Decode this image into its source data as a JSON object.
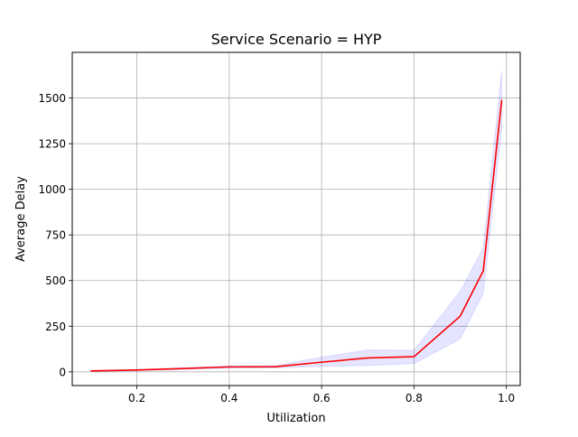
{
  "chart_data": {
    "type": "line",
    "title": "Service Scenario = HYP",
    "xlabel": "Utilization",
    "ylabel": "Average Delay",
    "xlim": [
      0.06,
      1.03
    ],
    "ylim": [
      -75,
      1750
    ],
    "x_ticks": [
      0.2,
      0.4,
      0.6,
      0.8,
      1.0
    ],
    "x_tick_labels": [
      "0.2",
      "0.4",
      "0.6",
      "0.8",
      "1.0"
    ],
    "y_ticks": [
      0,
      250,
      500,
      750,
      1000,
      1250,
      1500
    ],
    "y_tick_labels": [
      "0",
      "250",
      "500",
      "750",
      "1000",
      "1250",
      "1500"
    ],
    "grid": true,
    "legend": "none",
    "series": [
      {
        "x": [
          0.1,
          0.2,
          0.3,
          0.4,
          0.5,
          0.6,
          0.7,
          0.8,
          0.9,
          0.95,
          0.99
        ],
        "y": [
          5,
          10,
          18,
          27,
          28,
          53,
          76,
          83,
          305,
          553,
          1490
        ],
        "ci_low": [
          2,
          6,
          13,
          21,
          22,
          30,
          35,
          45,
          180,
          430,
          1330
        ],
        "ci_high": [
          8,
          14,
          23,
          33,
          34,
          80,
          120,
          118,
          440,
          680,
          1650
        ],
        "color": "#ff0000",
        "band_color": "#0000ff"
      }
    ]
  }
}
